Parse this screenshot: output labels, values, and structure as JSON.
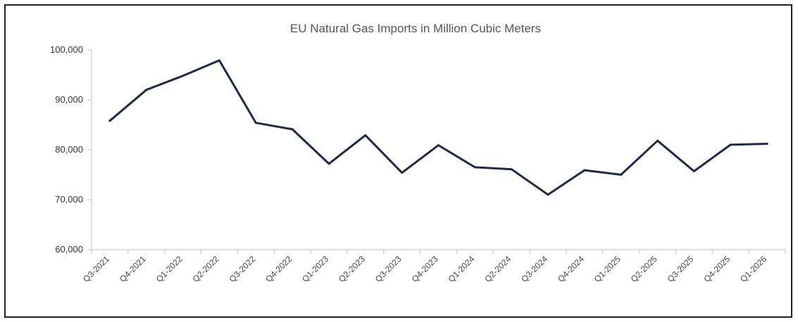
{
  "chart_data": {
    "type": "line",
    "title": "EU Natural Gas Imports in Million  Cubic Meters",
    "xlabel": "",
    "ylabel": "",
    "categories": [
      "Q3-2021",
      "Q4-2021",
      "Q1-2022",
      "Q2-2022",
      "Q3-2022",
      "Q4-2022",
      "Q1-2023",
      "Q2-2023",
      "Q3-2023",
      "Q4-2023",
      "Q1-2024",
      "Q2-2024",
      "Q3-2024",
      "Q4-2024",
      "Q1-2025",
      "Q2-2025",
      "Q3-2025",
      "Q4-2025",
      "Q1-2026"
    ],
    "series": [
      {
        "values": [
          85800,
          92000,
          94800,
          97900,
          85400,
          84100,
          77200,
          82900,
          75400,
          80900,
          76500,
          76100,
          71000,
          75900,
          75000,
          81800,
          75700,
          81000,
          81200
        ]
      }
    ],
    "ylim": [
      60000,
      100000
    ],
    "yticks": [
      {
        "value": 60000,
        "label": "60,000"
      },
      {
        "value": 70000,
        "label": "70,000"
      },
      {
        "value": 80000,
        "label": "80,000"
      },
      {
        "value": 90000,
        "label": "90,000"
      },
      {
        "value": 100000,
        "label": "100,000"
      }
    ],
    "grid": false,
    "legend": "none",
    "line_color": "#1f2a4a"
  }
}
